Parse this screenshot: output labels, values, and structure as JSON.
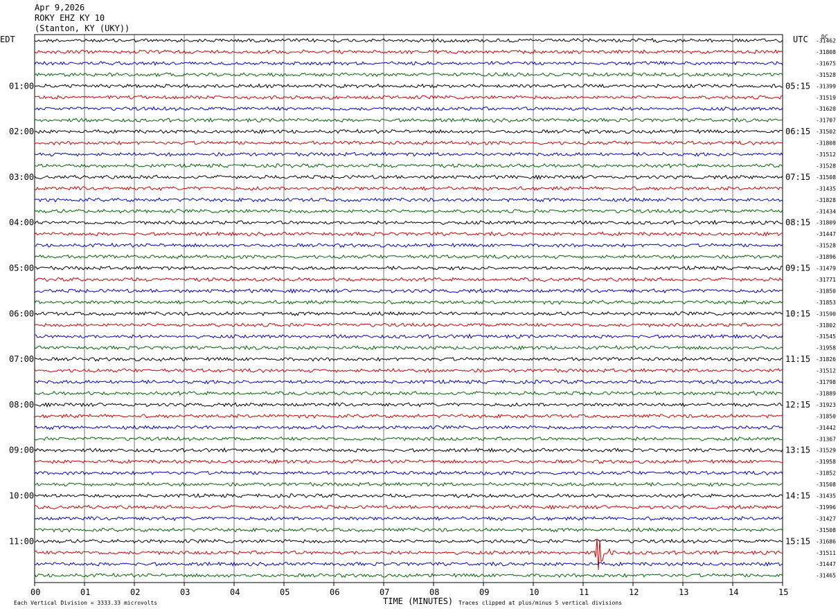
{
  "header": {
    "date": "Apr 9,2026",
    "station": "ROKY EHZ KY 10",
    "location": "(Stanton, KY (UKY))"
  },
  "labels": {
    "left_tz": "EDT",
    "right_tz": "UTC",
    "dc": "DC"
  },
  "footer": {
    "scale": "Each Vertical Division = 3333.33 microvolts",
    "clip": "Traces clipped at plus/minus 5 vertical divisions"
  },
  "chart_data": {
    "type": "line",
    "xlabel": "TIME (MINUTES)",
    "x_ticks": [
      "00",
      "01",
      "02",
      "03",
      "04",
      "05",
      "06",
      "07",
      "08",
      "09",
      "10",
      "11",
      "12",
      "13",
      "14",
      "15"
    ],
    "xlim": [
      0,
      15
    ],
    "left_hour_labels": [
      "01:00",
      "02:00",
      "03:00",
      "04:00",
      "05:00",
      "06:00",
      "07:00",
      "08:00",
      "09:00",
      "10:00",
      "11:00"
    ],
    "right_hour_labels": [
      "05:15",
      "06:15",
      "07:15",
      "08:15",
      "09:15",
      "10:15",
      "11:15",
      "12:15",
      "13:15",
      "14:15",
      "15:15"
    ],
    "trace_colors": [
      "#000000",
      "#d00000",
      "#0000c8",
      "#006400"
    ],
    "dc_offsets": [
      "-31462",
      "-31808",
      "-31675",
      "-31528",
      "-31399",
      "-31519",
      "-31620",
      "-31707",
      "-31502",
      "-31808",
      "-31512",
      "-31528",
      "-31508",
      "-31435",
      "-31828",
      "-31434",
      "-31809",
      "-31447",
      "-31528",
      "-31896",
      "-31479",
      "-31771",
      "-31850",
      "-31853",
      "-31590",
      "-31802",
      "-31545",
      "-31958",
      "-31826",
      "-31512",
      "-31798",
      "-31889",
      "-31923",
      "-31850",
      "-31442",
      "-31367",
      "-31529",
      "-31958",
      "-31852",
      "-31508",
      "-31435",
      "-31996",
      "-31427",
      "-31508",
      "-31686",
      "-31511",
      "-31447",
      "-31465"
    ],
    "events": [
      {
        "trace_index": 45,
        "minute": 11.3,
        "note": "clipped signal"
      }
    ]
  }
}
